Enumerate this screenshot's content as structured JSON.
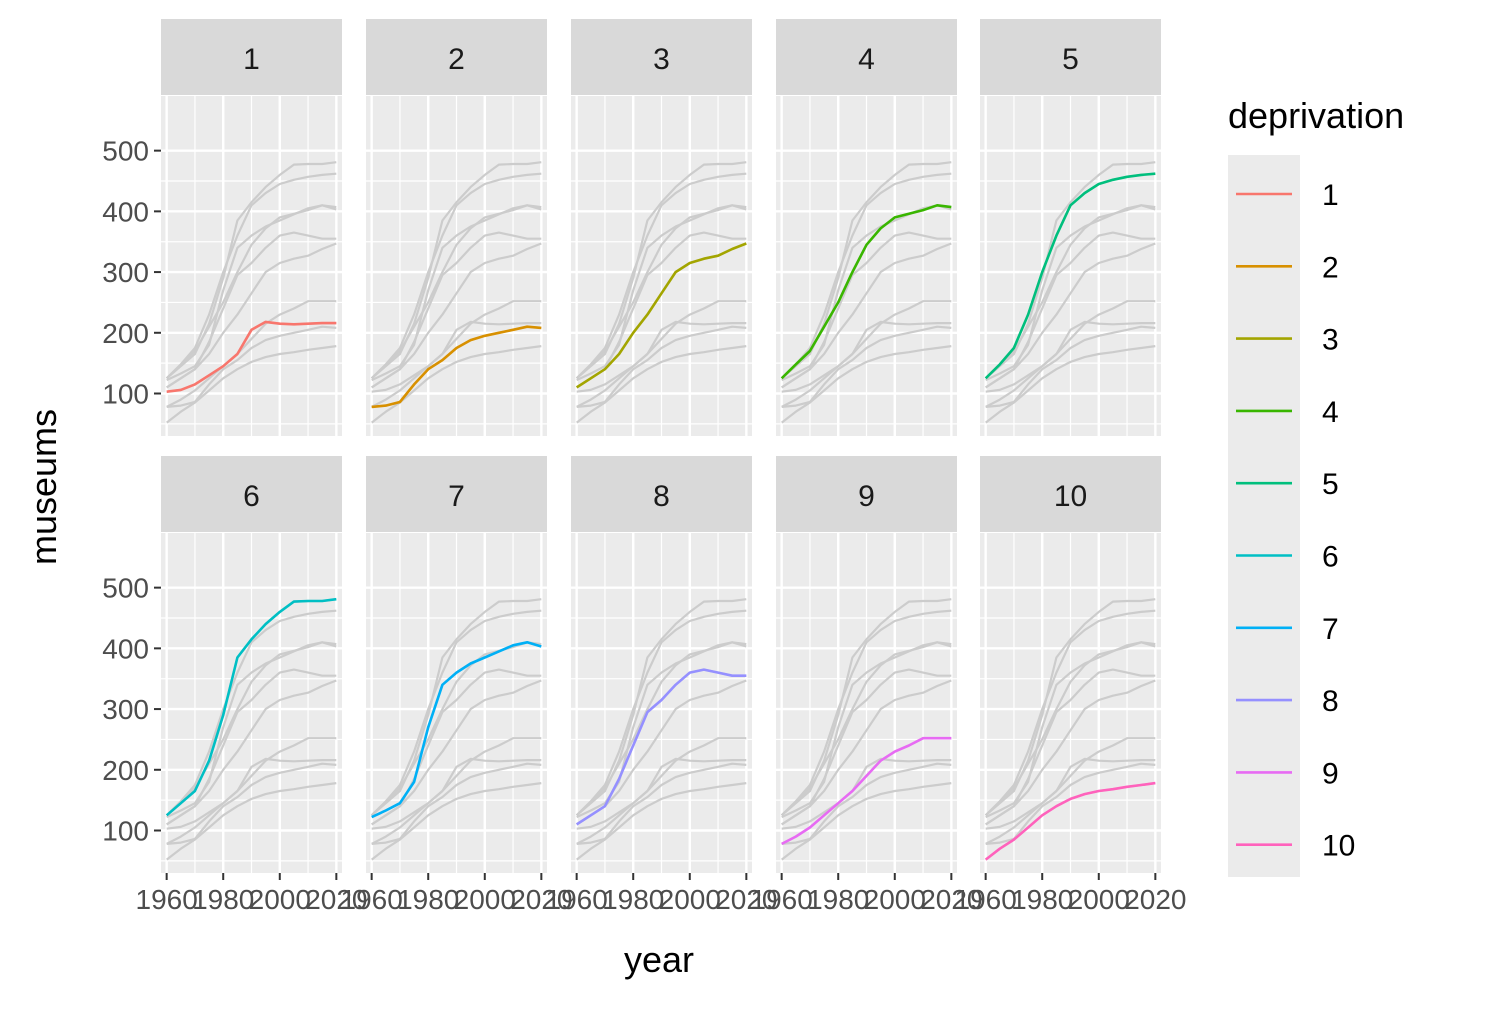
{
  "chart_data": {
    "type": "line",
    "faceted": true,
    "facet_by": "deprivation",
    "xlabel": "year",
    "ylabel": "museums",
    "xlim": [
      1958,
      2022
    ],
    "ylim": [
      30,
      590
    ],
    "x_ticks": [
      1960,
      1980,
      2000,
      2020
    ],
    "y_ticks": [
      100,
      200,
      300,
      400,
      500
    ],
    "grid": true,
    "background_lines_color": "#cccccc",
    "legend": {
      "title": "deprivation",
      "position": "right"
    },
    "series": [
      {
        "name": "1",
        "color": "#F8766D",
        "x": [
          1960,
          1965,
          1970,
          1975,
          1980,
          1985,
          1990,
          1995,
          2000,
          2005,
          2010,
          2015,
          2020
        ],
        "values": [
          103,
          106,
          115,
          130,
          145,
          165,
          205,
          218,
          215,
          214,
          215,
          216,
          216
        ]
      },
      {
        "name": "2",
        "color": "#D89000",
        "x": [
          1960,
          1965,
          1970,
          1975,
          1980,
          1985,
          1990,
          1995,
          2000,
          2005,
          2010,
          2015,
          2020
        ],
        "values": [
          78,
          80,
          86,
          115,
          140,
          155,
          175,
          188,
          195,
          200,
          205,
          210,
          208
        ]
      },
      {
        "name": "3",
        "color": "#A3A500",
        "x": [
          1960,
          1965,
          1970,
          1975,
          1980,
          1985,
          1990,
          1995,
          2000,
          2005,
          2010,
          2015,
          2020
        ],
        "values": [
          110,
          125,
          140,
          165,
          200,
          230,
          265,
          300,
          315,
          322,
          327,
          338,
          347
        ]
      },
      {
        "name": "4",
        "color": "#39B600",
        "x": [
          1960,
          1965,
          1970,
          1975,
          1980,
          1985,
          1990,
          1995,
          2000,
          2005,
          2010,
          2015,
          2020
        ],
        "values": [
          125,
          148,
          170,
          210,
          250,
          300,
          345,
          372,
          390,
          396,
          402,
          410,
          407
        ]
      },
      {
        "name": "5",
        "color": "#00BF7D",
        "x": [
          1960,
          1965,
          1970,
          1975,
          1980,
          1985,
          1990,
          1995,
          2000,
          2005,
          2010,
          2015,
          2020
        ],
        "values": [
          125,
          148,
          175,
          230,
          300,
          360,
          410,
          430,
          445,
          452,
          457,
          460,
          462
        ]
      },
      {
        "name": "6",
        "color": "#00BFC4",
        "x": [
          1960,
          1965,
          1970,
          1975,
          1980,
          1985,
          1990,
          1995,
          2000,
          2005,
          2010,
          2015,
          2020
        ],
        "values": [
          125,
          145,
          165,
          215,
          290,
          385,
          415,
          440,
          460,
          477,
          478,
          478,
          481
        ]
      },
      {
        "name": "7",
        "color": "#00B0F6",
        "x": [
          1960,
          1965,
          1970,
          1975,
          1980,
          1985,
          1990,
          1995,
          2000,
          2005,
          2010,
          2015,
          2020
        ],
        "values": [
          122,
          133,
          145,
          180,
          270,
          340,
          360,
          375,
          385,
          395,
          405,
          410,
          403
        ]
      },
      {
        "name": "8",
        "color": "#9590FF",
        "x": [
          1960,
          1965,
          1970,
          1975,
          1980,
          1985,
          1990,
          1995,
          2000,
          2005,
          2010,
          2015,
          2020
        ],
        "values": [
          110,
          125,
          140,
          185,
          240,
          295,
          315,
          340,
          360,
          365,
          360,
          355,
          355
        ]
      },
      {
        "name": "9",
        "color": "#E76BF3",
        "x": [
          1960,
          1965,
          1970,
          1975,
          1980,
          1985,
          1990,
          1995,
          2000,
          2005,
          2010,
          2015,
          2020
        ],
        "values": [
          78,
          90,
          105,
          125,
          145,
          165,
          190,
          215,
          230,
          240,
          252,
          252,
          252
        ]
      },
      {
        "name": "10",
        "color": "#FF62BC",
        "x": [
          1960,
          1965,
          1970,
          1975,
          1980,
          1985,
          1990,
          1995,
          2000,
          2005,
          2010,
          2015,
          2020
        ],
        "values": [
          52,
          70,
          85,
          105,
          125,
          140,
          152,
          160,
          165,
          168,
          172,
          175,
          178
        ]
      }
    ]
  }
}
